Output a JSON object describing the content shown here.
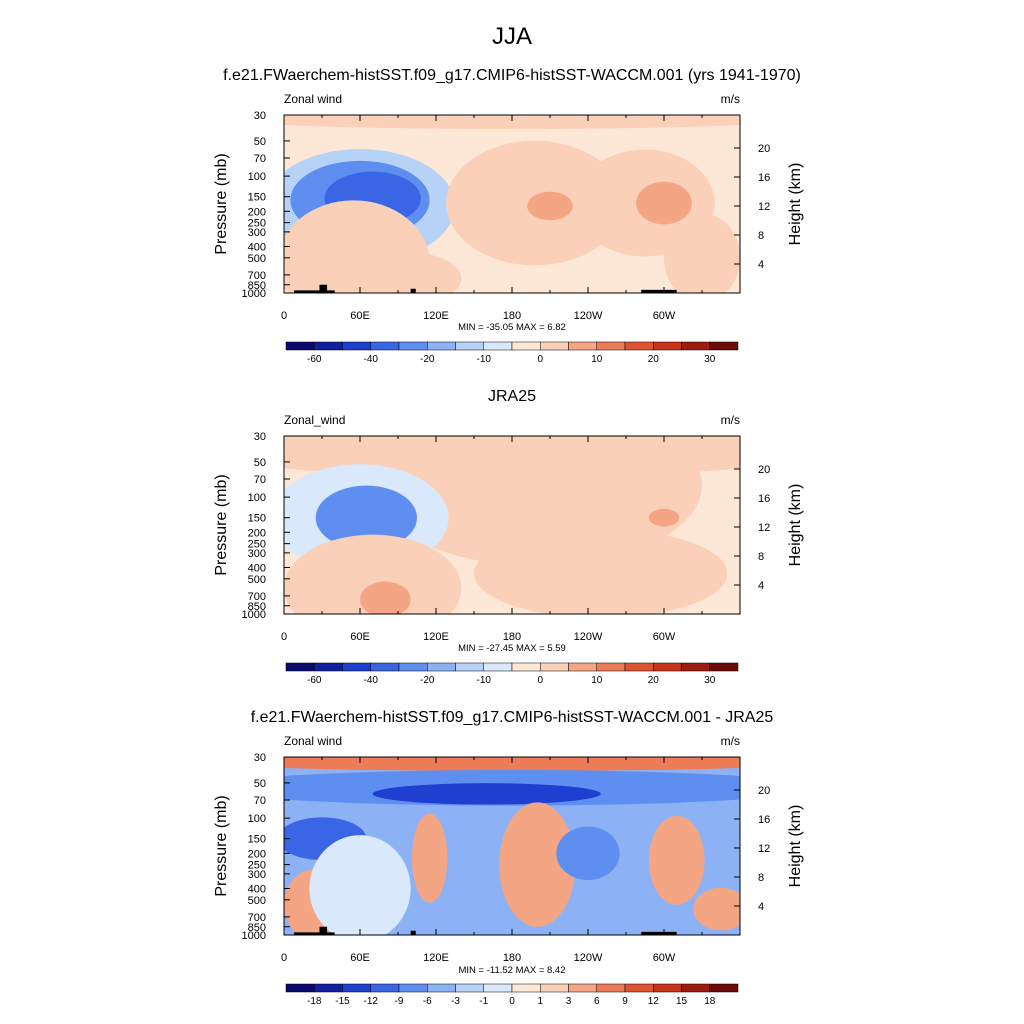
{
  "figure": {
    "title": "JJA",
    "panel_titles": [
      "f.e21.FWaerchem-histSST.f09_g17.CMIP6-histSST-WACCM.001 (yrs 1941-1970)",
      "JRA25",
      "f.e21.FWaerchem-histSST.f09_g17.CMIP6-histSST-WACCM.001 - JRA25"
    ]
  },
  "colors": {
    "wind_scale": [
      "#0a0a6e",
      "#0f1f9e",
      "#1e3fd0",
      "#3a66e6",
      "#5e8ef0",
      "#8cb2f5",
      "#b7d2f7",
      "#d9e8fb",
      "#fde7d6",
      "#fad0b8",
      "#f4a583",
      "#ec7c58",
      "#e0532f",
      "#c83318",
      "#9b1c10",
      "#6b0a06"
    ],
    "grid": "#000000"
  },
  "chart_data": [
    {
      "type": "heatmap",
      "variable_label": "Zonal wind",
      "units": "m/s",
      "ylabel": "Pressure (mb)",
      "ylabel_right": "Height (km)",
      "x_ticks": [
        "0",
        "60E",
        "120E",
        "180",
        "120W",
        "60W"
      ],
      "y_ticks": [
        "30",
        "50",
        "70",
        "100",
        "150",
        "200",
        "250",
        "300",
        "400",
        "500",
        "700",
        "850",
        "1000"
      ],
      "y_ticks_right": [
        "20",
        "16",
        "12",
        "8",
        "4"
      ],
      "stats": "MIN = -35.05  MAX =   6.82",
      "colorbar_labels": [
        "-60",
        "-40",
        "-20",
        "-10",
        "0",
        "10",
        "20",
        "30"
      ],
      "colorbar_label_positions": [
        1,
        3,
        5,
        7,
        9,
        11,
        13,
        15
      ],
      "xlim": [
        0,
        360
      ],
      "ylim_mb": [
        1000,
        30
      ],
      "background_value": -3,
      "blobs": [
        {
          "lon": 180,
          "lev": 32,
          "rx": 230,
          "ry": 0.06,
          "value": 1
        },
        {
          "lon": 60,
          "lev": 180,
          "rx": 75,
          "ry": 0.32,
          "value": -12
        },
        {
          "lon": 60,
          "lev": 160,
          "rx": 55,
          "ry": 0.22,
          "value": -22
        },
        {
          "lon": 70,
          "lev": 155,
          "rx": 38,
          "ry": 0.15,
          "value": -32
        },
        {
          "lon": 198,
          "lev": 170,
          "rx": 70,
          "ry": 0.35,
          "value": 2
        },
        {
          "lon": 210,
          "lev": 180,
          "rx": 18,
          "ry": 0.08,
          "value": 6
        },
        {
          "lon": 285,
          "lev": 170,
          "rx": 55,
          "ry": 0.3,
          "value": 2
        },
        {
          "lon": 300,
          "lev": 170,
          "rx": 22,
          "ry": 0.12,
          "value": 6
        },
        {
          "lon": 330,
          "lev": 500,
          "rx": 30,
          "ry": 0.25,
          "value": 1
        },
        {
          "lon": 55,
          "lev": 550,
          "rx": 60,
          "ry": 0.35,
          "value": 2
        },
        {
          "lon": 95,
          "lev": 750,
          "rx": 45,
          "ry": 0.15,
          "value": 3
        }
      ],
      "topography": [
        {
          "lon_start": 8,
          "lon_end": 40,
          "top_mb": 950
        },
        {
          "lon_start": 28,
          "lon_end": 34,
          "top_mb": 850
        },
        {
          "lon_start": 100,
          "lon_end": 104,
          "top_mb": 920
        },
        {
          "lon_start": 282,
          "lon_end": 310,
          "top_mb": 940
        }
      ]
    },
    {
      "type": "heatmap",
      "variable_label": "Zonal_wind",
      "units": "m/s",
      "ylabel": "Pressure (mb)",
      "ylabel_right": "Height (km)",
      "x_ticks": [
        "0",
        "60E",
        "120E",
        "180",
        "120W",
        "60W"
      ],
      "y_ticks": [
        "30",
        "50",
        "70",
        "100",
        "150",
        "200",
        "250",
        "300",
        "400",
        "500",
        "700",
        "850",
        "1000"
      ],
      "y_ticks_right": [
        "20",
        "16",
        "12",
        "8",
        "4"
      ],
      "stats": "MIN = -27.45  MAX =   5.59",
      "colorbar_labels": [
        "-60",
        "-40",
        "-20",
        "-10",
        "0",
        "10",
        "20",
        "30"
      ],
      "colorbar_label_positions": [
        1,
        3,
        5,
        7,
        9,
        11,
        13,
        15
      ],
      "xlim": [
        0,
        360
      ],
      "ylim_mb": [
        1000,
        30
      ],
      "background_value": -3,
      "blobs": [
        {
          "lon": 180,
          "lev": 40,
          "rx": 240,
          "ry": 0.15,
          "value": 1
        },
        {
          "lon": 200,
          "lev": 80,
          "rx": 130,
          "ry": 0.45,
          "value": 3
        },
        {
          "lon": 60,
          "lev": 150,
          "rx": 70,
          "ry": 0.3,
          "value": -10
        },
        {
          "lon": 65,
          "lev": 150,
          "rx": 40,
          "ry": 0.18,
          "value": -22
        },
        {
          "lon": 300,
          "lev": 150,
          "rx": 12,
          "ry": 0.05,
          "value": 6
        },
        {
          "lon": 70,
          "lev": 600,
          "rx": 70,
          "ry": 0.3,
          "value": 2
        },
        {
          "lon": 80,
          "lev": 750,
          "rx": 20,
          "ry": 0.1,
          "value": 5
        },
        {
          "lon": 250,
          "lev": 450,
          "rx": 100,
          "ry": 0.25,
          "value": 1
        }
      ],
      "topography": []
    },
    {
      "type": "heatmap",
      "variable_label": "Zonal wind",
      "units": "m/s",
      "ylabel": "Pressure (mb)",
      "ylabel_right": "Height (km)",
      "x_ticks": [
        "0",
        "60E",
        "120E",
        "180",
        "120W",
        "60W"
      ],
      "y_ticks": [
        "30",
        "50",
        "70",
        "100",
        "150",
        "200",
        "250",
        "300",
        "400",
        "500",
        "700",
        "850",
        "1000"
      ],
      "y_ticks_right": [
        "20",
        "16",
        "12",
        "8",
        "4"
      ],
      "stats": "MIN = -11.52  MAX =   8.42",
      "colorbar_labels": [
        "-18",
        "-15",
        "-12",
        "-9",
        "-6",
        "-3",
        "-1",
        "0",
        "1",
        "3",
        "6",
        "9",
        "12",
        "15",
        "18"
      ],
      "colorbar_label_positions": [
        1,
        2,
        3,
        4,
        5,
        6,
        7,
        8,
        9,
        10,
        11,
        12,
        13,
        14,
        15
      ],
      "xlim": [
        0,
        360
      ],
      "ylim_mb": [
        1000,
        30
      ],
      "background_value": -4,
      "blobs": [
        {
          "lon": 180,
          "lev": 32,
          "rx": 260,
          "ry": 0.06,
          "value": 8
        },
        {
          "lon": 180,
          "lev": 55,
          "rx": 240,
          "ry": 0.1,
          "value": -9
        },
        {
          "lon": 160,
          "lev": 62,
          "rx": 90,
          "ry": 0.06,
          "value": -13
        },
        {
          "lon": 30,
          "lev": 150,
          "rx": 35,
          "ry": 0.12,
          "value": -10
        },
        {
          "lon": 115,
          "lev": 220,
          "rx": 14,
          "ry": 0.25,
          "value": 3
        },
        {
          "lon": 200,
          "lev": 250,
          "rx": 30,
          "ry": 0.35,
          "value": 4
        },
        {
          "lon": 310,
          "lev": 230,
          "rx": 22,
          "ry": 0.25,
          "value": 5
        },
        {
          "lon": 25,
          "lev": 550,
          "rx": 25,
          "ry": 0.2,
          "value": 3
        },
        {
          "lon": 345,
          "lev": 600,
          "rx": 22,
          "ry": 0.12,
          "value": 4
        },
        {
          "lon": 60,
          "lev": 400,
          "rx": 40,
          "ry": 0.3,
          "value": -1
        },
        {
          "lon": 240,
          "lev": 200,
          "rx": 25,
          "ry": 0.15,
          "value": -8
        }
      ],
      "topography": [
        {
          "lon_start": 8,
          "lon_end": 40,
          "top_mb": 950
        },
        {
          "lon_start": 28,
          "lon_end": 34,
          "top_mb": 850
        },
        {
          "lon_start": 100,
          "lon_end": 104,
          "top_mb": 920
        },
        {
          "lon_start": 282,
          "lon_end": 310,
          "top_mb": 940
        }
      ]
    }
  ]
}
